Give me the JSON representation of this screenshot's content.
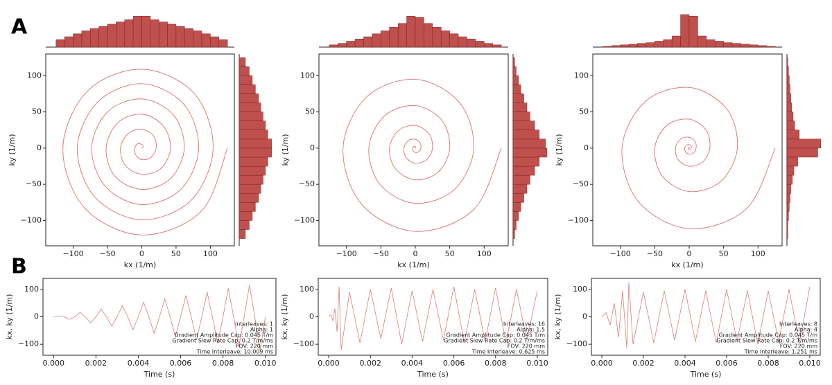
{
  "panel_labels": [
    "A",
    "B"
  ],
  "chart_data": [
    {
      "type": "trajectory",
      "color": "#d9534f",
      "xlabel": "kx (1/m)",
      "ylabel": "ky (1/m)",
      "xlim": [
        -140,
        135
      ],
      "ylim": [
        -135,
        130
      ],
      "xticks": [
        {
          "value": -100,
          "label": "−100"
        },
        {
          "value": -50,
          "label": "−50"
        },
        0,
        50,
        100
      ],
      "yticks": [
        {
          "value": -100,
          "label": "−100"
        },
        {
          "value": -50,
          "label": "−50"
        },
        0,
        50,
        100
      ],
      "x": [
        0,
        2,
        0,
        -6,
        -10,
        -9,
        0,
        13,
        21,
        17,
        0,
        -20,
        -31,
        -24,
        0,
        28,
        42,
        31,
        0,
        -35,
        -52,
        -39,
        0,
        42,
        62,
        46,
        0,
        -50,
        -73,
        -53,
        0,
        57,
        83,
        61,
        0,
        -64,
        -94,
        -68,
        0,
        72,
        104,
        76,
        0,
        -79,
        -115,
        -83,
        0,
        87,
        125
      ],
      "y": [
        0,
        2,
        5,
        6,
        0,
        -9,
        -16,
        -13,
        0,
        17,
        26,
        20,
        0,
        -24,
        -36,
        -28,
        0,
        31,
        47,
        35,
        0,
        -39,
        -57,
        -42,
        0,
        46,
        68,
        50,
        0,
        -53,
        -78,
        -57,
        0,
        61,
        89,
        64,
        0,
        -68,
        -99,
        -72,
        0,
        76,
        109,
        79,
        0,
        -83,
        -120,
        -87,
        0
      ],
      "hist_x": {
        "color": "#c0504d",
        "ylim": [
          0,
          45
        ],
        "bins": [
          -125,
          -112.5,
          -100,
          -87.5,
          -75,
          -62.5,
          -50,
          -37.5,
          -25,
          -12.5,
          0,
          12.5,
          25,
          37.5,
          50,
          62.5,
          75,
          87.5,
          100,
          112.5,
          125
        ],
        "counts": [
          10,
          14,
          18,
          22,
          25,
          28,
          31,
          34,
          37,
          42,
          42,
          37,
          34,
          31,
          28,
          25,
          22,
          18,
          14,
          10
        ]
      },
      "hist_y": {
        "color": "#c0504d",
        "xlim": [
          0,
          45
        ],
        "bins": [
          -125,
          -112.5,
          -100,
          -87.5,
          -75,
          -62.5,
          -50,
          -37.5,
          -25,
          -12.5,
          0,
          12.5,
          25,
          37.5,
          50,
          62.5,
          75,
          87.5,
          100,
          112.5,
          125
        ],
        "counts": [
          8,
          13,
          17,
          21,
          25,
          28,
          31,
          34,
          37,
          42,
          42,
          37,
          34,
          31,
          28,
          25,
          21,
          17,
          13,
          8
        ]
      }
    },
    {
      "type": "trajectory",
      "color": "#d9534f",
      "xlabel": "kx (1/m)",
      "ylabel": "ky (1/m)",
      "xlim": [
        -140,
        135
      ],
      "ylim": [
        -135,
        130
      ],
      "xticks": [
        {
          "value": -100,
          "label": "−100"
        },
        {
          "value": -50,
          "label": "−50"
        },
        0,
        50,
        100
      ],
      "yticks": [
        {
          "value": -100,
          "label": "−100"
        },
        {
          "value": -50,
          "label": "−50"
        },
        0,
        50,
        100
      ],
      "x": [
        0,
        0.7,
        0,
        -2.1,
        -4,
        -3.5,
        0,
        4.9,
        8,
        7.1,
        0,
        -10.2,
        -16.5,
        -13.2,
        0,
        16.2,
        25,
        19.9,
        0,
        -24.3,
        -37.5,
        -28.7,
        0,
        33.2,
        50,
        38.5,
        0,
        -44.6,
        -67.5,
        -50.8,
        0,
        57,
        85,
        63.6,
        0,
        -70.7,
        -105,
        -77.8,
        0,
        84.9,
        125
      ],
      "y": [
        0,
        0.7,
        2,
        2.1,
        0,
        -3.5,
        -6,
        -4.9,
        0,
        7.1,
        12.3,
        10.2,
        0,
        -13.2,
        -20.8,
        -16.2,
        0,
        19.9,
        31.3,
        24.3,
        0,
        -28.7,
        -43.8,
        -33.2,
        0,
        38.5,
        58.8,
        44.6,
        0,
        -50.8,
        -76.3,
        -57,
        0,
        63.6,
        95,
        70.7,
        0,
        -77.8,
        -115,
        -84.9,
        0
      ],
      "hist_x": {
        "color": "#c0504d",
        "ylim": [
          0,
          45
        ],
        "bins": [
          -125,
          -112.5,
          -100,
          -87.5,
          -75,
          -62.5,
          -50,
          -37.5,
          -25,
          -12.5,
          0,
          12.5,
          25,
          37.5,
          50,
          62.5,
          75,
          87.5,
          100,
          112.5,
          125
        ],
        "counts": [
          3,
          5,
          8,
          11,
          14,
          18,
          22,
          27,
          32,
          42,
          40,
          32,
          27,
          22,
          18,
          14,
          11,
          8,
          5,
          3
        ]
      },
      "hist_y": {
        "color": "#c0504d",
        "xlim": [
          0,
          45
        ],
        "bins": [
          -125,
          -112.5,
          -100,
          -87.5,
          -75,
          -62.5,
          -50,
          -37.5,
          -25,
          -12.5,
          0,
          12.5,
          25,
          37.5,
          50,
          62.5,
          75,
          87.5,
          100,
          112.5,
          125
        ],
        "counts": [
          2,
          4,
          7,
          10,
          14,
          18,
          22,
          28,
          34,
          44,
          42,
          34,
          28,
          22,
          18,
          14,
          10,
          7,
          4,
          2
        ]
      }
    },
    {
      "type": "trajectory",
      "color": "#d9534f",
      "xlabel": "kx (1/m)",
      "ylabel": "ky (1/m)",
      "xlim": [
        -140,
        135
      ],
      "ylim": [
        -135,
        130
      ],
      "xticks": [
        {
          "value": -100,
          "label": "−100"
        },
        {
          "value": -50,
          "label": "−50"
        },
        0,
        50,
        100
      ],
      "yticks": [
        {
          "value": -100,
          "label": "−100"
        },
        {
          "value": -50,
          "label": "−50"
        },
        0,
        50,
        100
      ],
      "x": [
        0,
        0.3,
        0,
        -0.8,
        -1.5,
        -1.3,
        0,
        1.8,
        3,
        2.8,
        0,
        -4,
        -6.5,
        -5.2,
        0,
        6.4,
        10,
        8.8,
        0,
        -12.4,
        -20,
        -15.9,
        0,
        19.4,
        30,
        24.7,
        0,
        -31.8,
        -50,
        -38.9,
        0,
        46,
        70,
        54.4,
        0,
        -64.1,
        -97.5,
        -73.8,
        0,
        83.5,
        125
      ],
      "y": [
        0,
        0.3,
        0.8,
        0.8,
        0,
        -1.3,
        -2.3,
        -1.8,
        0,
        2.8,
        4.8,
        4,
        0,
        -5.2,
        -8.3,
        -6.4,
        0,
        8.8,
        15,
        12.4,
        0,
        -15.9,
        -25,
        -19.4,
        0,
        24.7,
        40,
        31.8,
        0,
        -38.9,
        -60,
        -46,
        0,
        54.4,
        83.8,
        64.1,
        0,
        -73.8,
        -111.3,
        -83.5,
        0
      ],
      "hist_x": {
        "color": "#c0504d",
        "ylim": [
          0,
          45
        ],
        "bins": [
          -125,
          -112.5,
          -100,
          -87.5,
          -75,
          -62.5,
          -50,
          -37.5,
          -25,
          -12.5,
          0,
          12.5,
          25,
          37.5,
          50,
          62.5,
          75,
          87.5,
          100,
          112.5,
          125
        ],
        "counts": [
          1,
          2,
          3,
          4,
          5,
          6,
          8,
          10,
          15,
          44,
          42,
          15,
          10,
          8,
          6,
          5,
          4,
          3,
          2,
          1
        ]
      },
      "hist_y": {
        "color": "#c0504d",
        "xlim": [
          0,
          45
        ],
        "bins": [
          -125,
          -112.5,
          -100,
          -87.5,
          -75,
          -62.5,
          -50,
          -37.5,
          -25,
          -12.5,
          0,
          12.5,
          25,
          37.5,
          50,
          62.5,
          75,
          87.5,
          100,
          112.5,
          125
        ],
        "counts": [
          1,
          1,
          2,
          3,
          4,
          5,
          7,
          9,
          14,
          40,
          44,
          16,
          10,
          8,
          6,
          5,
          4,
          3,
          2,
          1
        ]
      }
    },
    {
      "type": "line",
      "color": "#e07a76",
      "xlabel": "Time (s)",
      "ylabel": "kx, ky (1/m)",
      "xlim": [
        -0.0005,
        0.0105
      ],
      "ylim": [
        -140,
        140
      ],
      "xticks": [
        {
          "value": 0,
          "label": "0.000"
        },
        {
          "value": 0.002,
          "label": "0.002"
        },
        {
          "value": 0.004,
          "label": "0.004"
        },
        {
          "value": 0.006,
          "label": "0.006"
        },
        {
          "value": 0.008,
          "label": "0.008"
        },
        {
          "value": 0.01,
          "label": "0.010"
        }
      ],
      "yticks": [
        {
          "value": -100,
          "label": "−100"
        },
        0,
        100
      ],
      "annotations": [
        "Interleaves: 1",
        "Alpha:   1",
        "Gradient Amplitude Cap: 0.045 T/m",
        "Gradient Slew Rate Cap: 0.2 T/m/ms",
        "FOV: 220 mm",
        "Time Interleave: 10.009 ms"
      ],
      "x": [
        0,
        0.00025,
        0.0005,
        0.00075,
        0.001,
        0.00125,
        0.0015,
        0.00175,
        0.002,
        0.00225,
        0.0025,
        0.00275,
        0.003,
        0.00325,
        0.0035,
        0.00375,
        0.004,
        0.00425,
        0.0045,
        0.00475,
        0.005,
        0.00525,
        0.0055,
        0.00575,
        0.006,
        0.00625,
        0.0065,
        0.00675,
        0.007,
        0.00725,
        0.0075,
        0.00775,
        0.008,
        0.00825,
        0.0085,
        0.00875,
        0.009,
        0.00925,
        0.0095,
        0.00975,
        0.01
      ],
      "values": [
        0,
        3.1,
        0,
        -9.4,
        0,
        15.6,
        0,
        -21.9,
        0,
        28.1,
        0,
        -34.4,
        0,
        40.6,
        0,
        -46.9,
        0,
        53.1,
        0,
        -59.4,
        0,
        65.6,
        0,
        -71.9,
        0,
        78.1,
        0,
        -84.4,
        0,
        90.6,
        0,
        -96.9,
        0,
        103.1,
        0,
        -109.4,
        0,
        115.6,
        0,
        -121.9,
        0
      ]
    },
    {
      "type": "line",
      "color": "#e07a76",
      "xlabel": "Time (s)",
      "ylabel": "kx, ky (1/m)",
      "xlim": [
        -0.0005,
        0.0105
      ],
      "ylim": [
        -140,
        140
      ],
      "xticks": [
        {
          "value": 0,
          "label": "0.000"
        },
        {
          "value": 0.002,
          "label": "0.002"
        },
        {
          "value": 0.004,
          "label": "0.004"
        },
        {
          "value": 0.006,
          "label": "0.006"
        },
        {
          "value": 0.008,
          "label": "0.008"
        },
        {
          "value": 0.01,
          "label": "0.010"
        }
      ],
      "yticks": [
        {
          "value": -100,
          "label": "−100"
        },
        0,
        100
      ],
      "annotations": [
        "Interleaves: 16",
        "Alpha:   1.5",
        "Gradient Amplitude Cap: 0.045 T/m",
        "Gradient Slew Rate Cap: 0.2 T/m/ms",
        "FOV: 220 mm",
        "Time Interleave: 0.625 ms"
      ],
      "x": [
        0,
        0.0001,
        0.0002,
        0.0003,
        0.0004,
        0.0005,
        0.0006,
        0.001,
        0.0015,
        0.002,
        0.0025,
        0.003,
        0.0035,
        0.004,
        0.0045,
        0.005,
        0.0055,
        0.006,
        0.0065,
        0.007,
        0.0075,
        0.008,
        0.0085,
        0.009,
        0.0095,
        0.01
      ],
      "values": [
        0,
        8,
        -15,
        30,
        -55,
        110,
        -120,
        90,
        -95,
        100,
        -80,
        105,
        -100,
        95,
        -90,
        100,
        -85,
        110,
        -95,
        100,
        -90,
        105,
        -95,
        100,
        -85,
        95
      ]
    },
    {
      "type": "line",
      "color": "#e07a76",
      "xlabel": "Time (s)",
      "ylabel": "kx, ky (1/m)",
      "xlim": [
        -0.0005,
        0.0105
      ],
      "ylim": [
        -140,
        140
      ],
      "xticks": [
        {
          "value": 0,
          "label": "0.000"
        },
        {
          "value": 0.002,
          "label": "0.002"
        },
        {
          "value": 0.004,
          "label": "0.004"
        },
        {
          "value": 0.006,
          "label": "0.006"
        },
        {
          "value": 0.008,
          "label": "0.008"
        },
        {
          "value": 0.01,
          "label": "0.010"
        }
      ],
      "yticks": [
        {
          "value": -100,
          "label": "−100"
        },
        0,
        100
      ],
      "annotations": [
        "Interleaves: 8",
        "Alpha:   4",
        "Gradient Amplitude Cap: 0.045 T/m",
        "Gradient Slew Rate Cap: 0.2 T/m/ms",
        "FOV: 220 mm",
        "Time Interleave: 1.251 ms"
      ],
      "x": [
        0,
        0.0002,
        0.0004,
        0.0006,
        0.0008,
        0.001,
        0.0012,
        0.0013,
        0.0015,
        0.002,
        0.0025,
        0.003,
        0.0035,
        0.004,
        0.0045,
        0.005,
        0.0055,
        0.006,
        0.0065,
        0.007,
        0.0075,
        0.008,
        0.0085,
        0.009,
        0.0095,
        0.01
      ],
      "values": [
        0,
        15,
        -30,
        50,
        -75,
        95,
        -115,
        125,
        -100,
        90,
        -95,
        95,
        -85,
        100,
        -90,
        95,
        -95,
        100,
        -90,
        95,
        -100,
        95,
        -90,
        100,
        -95,
        110
      ]
    }
  ]
}
